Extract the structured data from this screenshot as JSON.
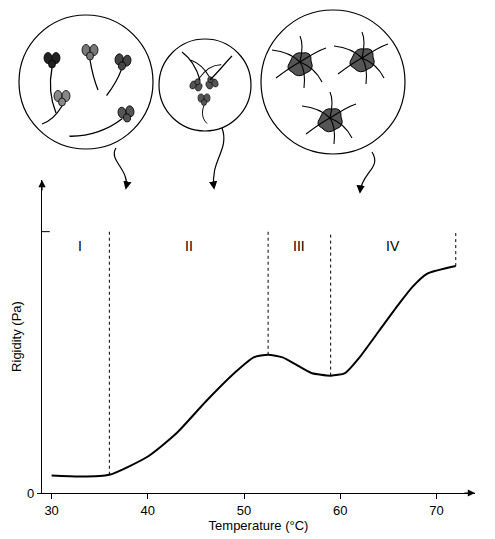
{
  "chart_data": {
    "type": "line",
    "x_label": "Temperature (°C)",
    "y_label": "Rigidity (Pa)",
    "x": [
      30,
      33,
      36,
      40,
      43,
      46,
      49,
      51,
      52.5,
      54,
      55.5,
      57,
      59,
      60.5,
      62,
      64,
      66,
      67.5,
      69,
      72
    ],
    "values": [
      0.067,
      0.063,
      0.07,
      0.14,
      0.23,
      0.35,
      0.46,
      0.52,
      0.53,
      0.52,
      0.49,
      0.46,
      0.45,
      0.46,
      0.52,
      0.62,
      0.72,
      0.79,
      0.84,
      0.87
    ],
    "color": "#000000",
    "xlim": [
      29,
      74
    ],
    "xticks": [
      30,
      40,
      50,
      60,
      70
    ],
    "ylim": [
      0,
      1.2
    ],
    "yticks": [
      0
    ],
    "grid": false,
    "regions": {
      "labels": [
        "I",
        "II",
        "III",
        "IV"
      ],
      "boundaries": [
        36,
        52.5,
        59,
        72
      ]
    }
  }
}
